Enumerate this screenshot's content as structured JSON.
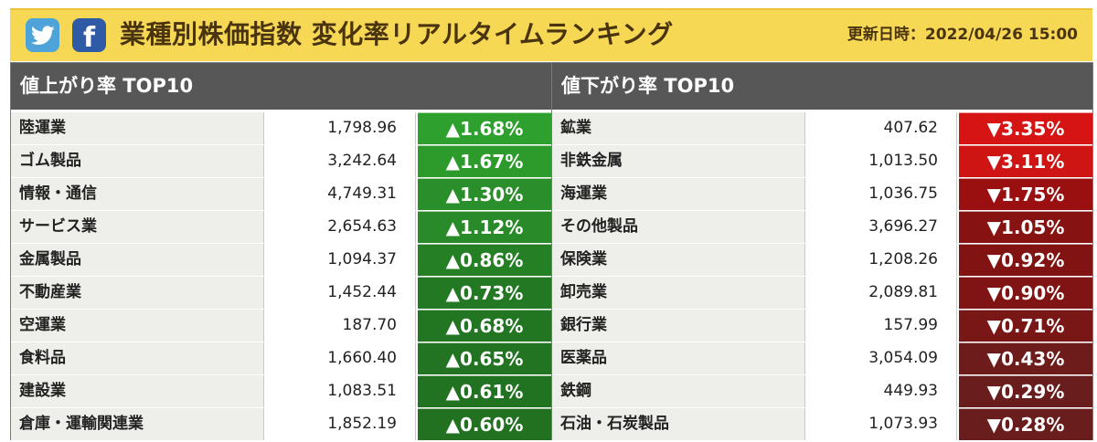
{
  "header": {
    "title": "業種別株価指数 変化率リアルタイムランキング",
    "updated": "更新日時：2022/04/26 15:00"
  },
  "up": {
    "heading": "値上がり率 TOP10",
    "rows": [
      {
        "name": "陸運業",
        "value": "1,798.96",
        "change": "▲1.68%",
        "color": "#2ea02e"
      },
      {
        "name": "ゴム製品",
        "value": "3,242.64",
        "change": "▲1.67%",
        "color": "#2c9b2c"
      },
      {
        "name": "情報・通信",
        "value": "4,749.31",
        "change": "▲1.30%",
        "color": "#2a8f2a"
      },
      {
        "name": "サービス業",
        "value": "2,654.63",
        "change": "▲1.12%",
        "color": "#288a28"
      },
      {
        "name": "金属製品",
        "value": "1,094.37",
        "change": "▲0.86%",
        "color": "#257f25"
      },
      {
        "name": "不動産業",
        "value": "1,452.44",
        "change": "▲0.73%",
        "color": "#237823"
      },
      {
        "name": "空運業",
        "value": "187.70",
        "change": "▲0.68%",
        "color": "#227622"
      },
      {
        "name": "食料品",
        "value": "1,660.40",
        "change": "▲0.65%",
        "color": "#227422"
      },
      {
        "name": "建設業",
        "value": "1,083.51",
        "change": "▲0.61%",
        "color": "#217221"
      },
      {
        "name": "倉庫・運輸関連業",
        "value": "1,852.19",
        "change": "▲0.60%",
        "color": "#217121"
      }
    ]
  },
  "down": {
    "heading": "値下がり率 TOP10",
    "rows": [
      {
        "name": "鉱業",
        "value": "407.62",
        "change": "▼3.35%",
        "color": "#d71414"
      },
      {
        "name": "非鉄金属",
        "value": "1,013.50",
        "change": "▼3.11%",
        "color": "#cf1414"
      },
      {
        "name": "海運業",
        "value": "1,036.75",
        "change": "▼1.75%",
        "color": "#9a1010"
      },
      {
        "name": "その他製品",
        "value": "3,696.27",
        "change": "▼1.05%",
        "color": "#861212"
      },
      {
        "name": "保険業",
        "value": "1,208.26",
        "change": "▼0.92%",
        "color": "#811313"
      },
      {
        "name": "卸売業",
        "value": "2,089.81",
        "change": "▼0.90%",
        "color": "#801313"
      },
      {
        "name": "銀行業",
        "value": "157.99",
        "change": "▼0.71%",
        "color": "#791717"
      },
      {
        "name": "医薬品",
        "value": "3,054.09",
        "change": "▼0.43%",
        "color": "#6e1b1b"
      },
      {
        "name": "鉄鋼",
        "value": "449.93",
        "change": "▼0.29%",
        "color": "#6a1d1d"
      },
      {
        "name": "石油・石炭製品",
        "value": "1,073.93",
        "change": "▼0.28%",
        "color": "#6a1d1d"
      }
    ]
  }
}
